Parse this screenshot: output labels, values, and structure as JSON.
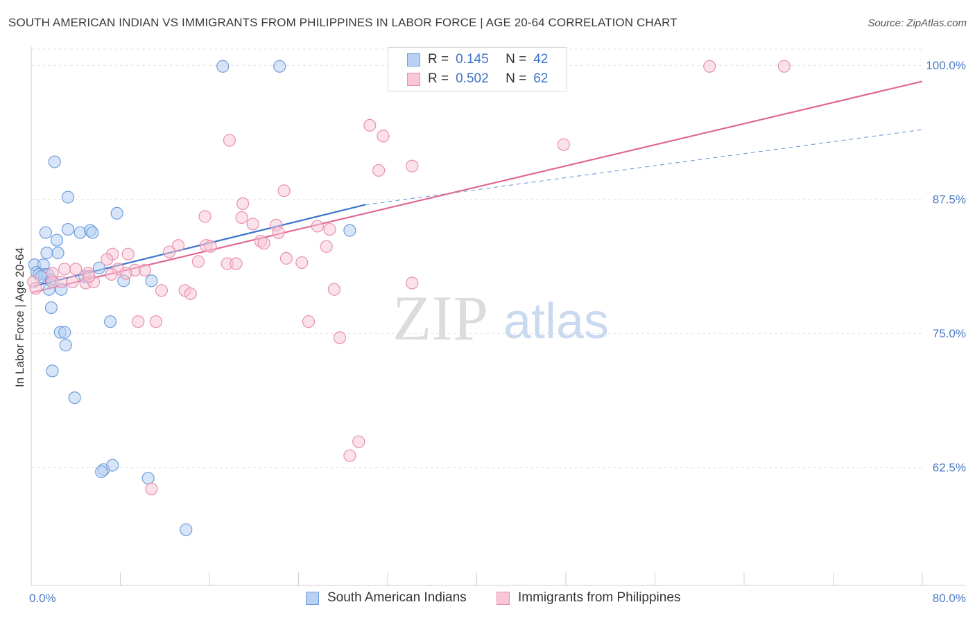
{
  "title": "SOUTH AMERICAN INDIAN VS IMMIGRANTS FROM PHILIPPINES IN LABOR FORCE | AGE 20-64 CORRELATION CHART",
  "source": "Source: ZipAtlas.com",
  "watermark": {
    "zip": "ZIP",
    "atlas": "atlas"
  },
  "legend": {
    "r_label": "R =",
    "n_label": "N =",
    "rows": [
      {
        "r": "0.145",
        "n": "42"
      },
      {
        "r": "0.502",
        "n": "62"
      }
    ]
  },
  "colors": {
    "blue_fill": "#b8d0f2",
    "blue_stroke": "#6f9ede",
    "blue_line": "#3a74cc",
    "pink_fill": "#f8c6d5",
    "pink_stroke": "#e890ad",
    "pink_line": "#e06893",
    "tick_text": "#4a79c4",
    "grid": "#e2e2e2"
  },
  "chart_data": {
    "type": "scatter",
    "title": "SOUTH AMERICAN INDIAN VS IMMIGRANTS FROM PHILIPPINES IN LABOR FORCE | AGE 20-64 CORRELATION CHART",
    "xlabel": "",
    "ylabel": "In Labor Force | Age 20-64",
    "xlim": [
      0,
      80
    ],
    "ylim": [
      51.5,
      101.5
    ],
    "x_tick_labels": [
      "0.0%",
      "80.0%"
    ],
    "y_ticks": [
      62.5,
      75.0,
      87.5,
      100.0
    ],
    "y_tick_labels": [
      "62.5%",
      "75.0%",
      "87.5%",
      "100.0%"
    ],
    "series": [
      {
        "name": "South American Indians",
        "color": "blue",
        "r": 0.145,
        "n": 42,
        "trend": {
          "x0": 0.2,
          "y0": 79.4,
          "x1": 30.0,
          "y1": 87.0,
          "dash_to_x": 80.0,
          "dash_to_y": 94.0
        },
        "points": [
          [
            17.2,
            99.9
          ],
          [
            22.3,
            99.9
          ],
          [
            2.1,
            91.0
          ],
          [
            3.3,
            87.7
          ],
          [
            7.7,
            86.2
          ],
          [
            1.3,
            84.4
          ],
          [
            3.3,
            84.7
          ],
          [
            4.4,
            84.4
          ],
          [
            5.3,
            84.6
          ],
          [
            5.5,
            84.4
          ],
          [
            2.3,
            83.7
          ],
          [
            1.4,
            82.5
          ],
          [
            2.4,
            82.5
          ],
          [
            0.3,
            81.4
          ],
          [
            1.1,
            81.4
          ],
          [
            6.1,
            81.1
          ],
          [
            0.5,
            80.7
          ],
          [
            0.7,
            80.5
          ],
          [
            1.2,
            80.5
          ],
          [
            1.5,
            80.5
          ],
          [
            0.9,
            80.3
          ],
          [
            1.8,
            80.0
          ],
          [
            4.8,
            80.3
          ],
          [
            8.3,
            79.9
          ],
          [
            10.8,
            79.9
          ],
          [
            28.6,
            84.6
          ],
          [
            1.6,
            79.1
          ],
          [
            2.7,
            79.1
          ],
          [
            1.8,
            77.4
          ],
          [
            2.6,
            75.1
          ],
          [
            3.0,
            75.1
          ],
          [
            7.1,
            76.1
          ],
          [
            3.1,
            73.9
          ],
          [
            1.9,
            71.5
          ],
          [
            3.9,
            69.0
          ],
          [
            6.5,
            62.3
          ],
          [
            6.3,
            62.1
          ],
          [
            7.3,
            62.7
          ],
          [
            10.5,
            61.5
          ],
          [
            13.9,
            56.7
          ]
        ]
      },
      {
        "name": "Immigrants from Philippines",
        "color": "pink",
        "r": 0.502,
        "n": 62,
        "trend": {
          "x0": 0.0,
          "y0": 78.8,
          "x1": 80.0,
          "y1": 98.5
        },
        "points": [
          [
            60.9,
            99.9
          ],
          [
            67.6,
            99.9
          ],
          [
            30.4,
            94.4
          ],
          [
            31.6,
            93.4
          ],
          [
            17.8,
            93.0
          ],
          [
            47.8,
            92.6
          ],
          [
            34.2,
            90.6
          ],
          [
            31.2,
            90.2
          ],
          [
            22.7,
            88.3
          ],
          [
            19.0,
            87.1
          ],
          [
            15.6,
            85.9
          ],
          [
            18.9,
            85.8
          ],
          [
            19.9,
            85.2
          ],
          [
            22.0,
            85.1
          ],
          [
            25.7,
            85.0
          ],
          [
            26.8,
            84.7
          ],
          [
            22.2,
            84.4
          ],
          [
            20.6,
            83.6
          ],
          [
            20.9,
            83.4
          ],
          [
            13.2,
            83.2
          ],
          [
            15.7,
            83.2
          ],
          [
            16.1,
            83.1
          ],
          [
            26.5,
            83.1
          ],
          [
            12.4,
            82.6
          ],
          [
            7.3,
            82.4
          ],
          [
            8.7,
            82.4
          ],
          [
            22.9,
            82.0
          ],
          [
            6.8,
            81.9
          ],
          [
            15.0,
            81.7
          ],
          [
            17.6,
            81.5
          ],
          [
            18.4,
            81.5
          ],
          [
            24.3,
            81.6
          ],
          [
            3.0,
            81.0
          ],
          [
            4.0,
            81.0
          ],
          [
            7.8,
            81.0
          ],
          [
            9.3,
            80.9
          ],
          [
            10.2,
            80.9
          ],
          [
            1.9,
            80.6
          ],
          [
            5.1,
            80.6
          ],
          [
            7.2,
            80.5
          ],
          [
            8.5,
            80.6
          ],
          [
            0.2,
            79.8
          ],
          [
            1.9,
            79.8
          ],
          [
            2.7,
            79.8
          ],
          [
            3.7,
            79.8
          ],
          [
            4.9,
            79.7
          ],
          [
            5.6,
            79.8
          ],
          [
            5.2,
            80.3
          ],
          [
            0.4,
            79.2
          ],
          [
            34.2,
            79.7
          ],
          [
            11.7,
            79.0
          ],
          [
            13.8,
            79.0
          ],
          [
            14.3,
            78.7
          ],
          [
            27.2,
            79.1
          ],
          [
            9.6,
            76.1
          ],
          [
            11.2,
            76.1
          ],
          [
            24.9,
            76.1
          ],
          [
            27.7,
            74.6
          ],
          [
            29.4,
            64.9
          ],
          [
            28.6,
            63.6
          ],
          [
            10.8,
            60.5
          ]
        ]
      }
    ]
  },
  "bottom_legend": [
    "South American Indians",
    "Immigrants from Philippines"
  ]
}
